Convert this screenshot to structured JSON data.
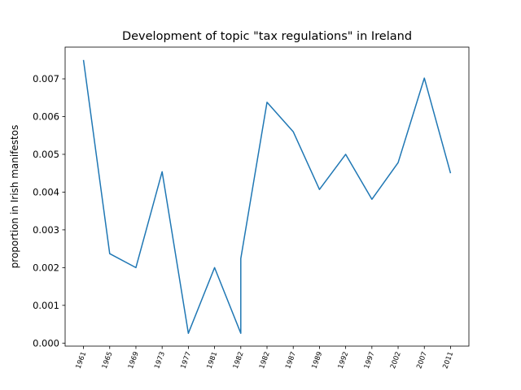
{
  "chart_data": {
    "type": "line",
    "title": "Development of topic \"tax regulations\" in Ireland",
    "ylabel": "proportion in Irish manifestos",
    "x": [
      0,
      1,
      2,
      3,
      4,
      5,
      6,
      6,
      7,
      8,
      9,
      10,
      11,
      12,
      13,
      14
    ],
    "series": [
      {
        "name": "tax regulations",
        "color": "#1f77b4",
        "values": [
          0.0075,
          0.00237,
          0.002,
          0.00454,
          0.00026,
          0.002,
          0.00026,
          0.00224,
          0.00638,
          0.0056,
          0.00407,
          0.005,
          0.00381,
          0.00478,
          0.00702,
          0.0045
        ]
      }
    ],
    "xlim": [
      -0.7,
      14.7
    ],
    "xticks": [
      {
        "value": 0,
        "label": "1961"
      },
      {
        "value": 1,
        "label": "1965"
      },
      {
        "value": 2,
        "label": "1969"
      },
      {
        "value": 3,
        "label": "1973"
      },
      {
        "value": 4,
        "label": "1977"
      },
      {
        "value": 5,
        "label": "1981"
      },
      {
        "value": 6,
        "label": "1982"
      },
      {
        "value": 7,
        "label": "1982"
      },
      {
        "value": 8,
        "label": "1987"
      },
      {
        "value": 9,
        "label": "1989"
      },
      {
        "value": 10,
        "label": "1992"
      },
      {
        "value": 11,
        "label": "1997"
      },
      {
        "value": 12,
        "label": "2002"
      },
      {
        "value": 13,
        "label": "2007"
      },
      {
        "value": 14,
        "label": "2011"
      }
    ],
    "ylim": [
      -8e-05,
      0.00784
    ],
    "yticks": [
      {
        "value": 0,
        "label": "0.000"
      },
      {
        "value": 0.001,
        "label": "0.001"
      },
      {
        "value": 0.002,
        "label": "0.002"
      },
      {
        "value": 0.003,
        "label": "0.003"
      },
      {
        "value": 0.004,
        "label": "0.004"
      },
      {
        "value": 0.005,
        "label": "0.005"
      },
      {
        "value": 0.006,
        "label": "0.006"
      },
      {
        "value": 0.007,
        "label": "0.007"
      }
    ],
    "grid": false
  }
}
